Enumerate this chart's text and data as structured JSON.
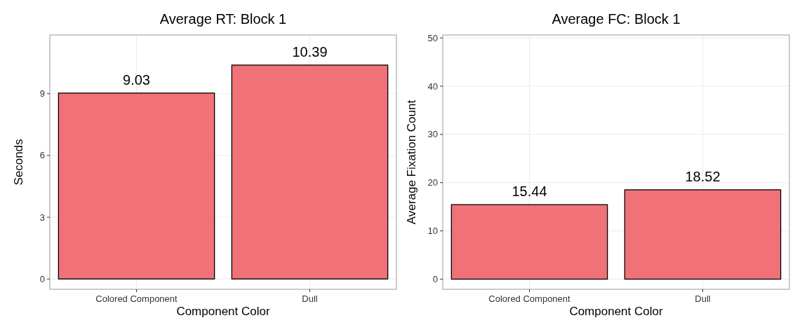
{
  "chart_data": [
    {
      "type": "bar",
      "title": "Average RT: Block 1",
      "xlabel": "Component Color",
      "ylabel": "Seconds",
      "categories": [
        "Colored Component",
        "Dull"
      ],
      "values": [
        9.03,
        10.39
      ],
      "color": "#f07177",
      "ylim": [
        -0.5,
        11.85
      ],
      "yticks": [
        0,
        3,
        6,
        9
      ],
      "grid": true,
      "data_labels": true
    },
    {
      "type": "bar",
      "title": "Average FC: Block 1",
      "xlabel": "Component Color",
      "ylabel": "Average Fixation Count",
      "categories": [
        "Colored Component",
        "Dull"
      ],
      "values": [
        15.44,
        18.52
      ],
      "color": "#f07177",
      "ylim": [
        -2.1,
        50.6
      ],
      "yticks": [
        0,
        10,
        20,
        30,
        40,
        50
      ],
      "grid": true,
      "data_labels": true
    }
  ]
}
